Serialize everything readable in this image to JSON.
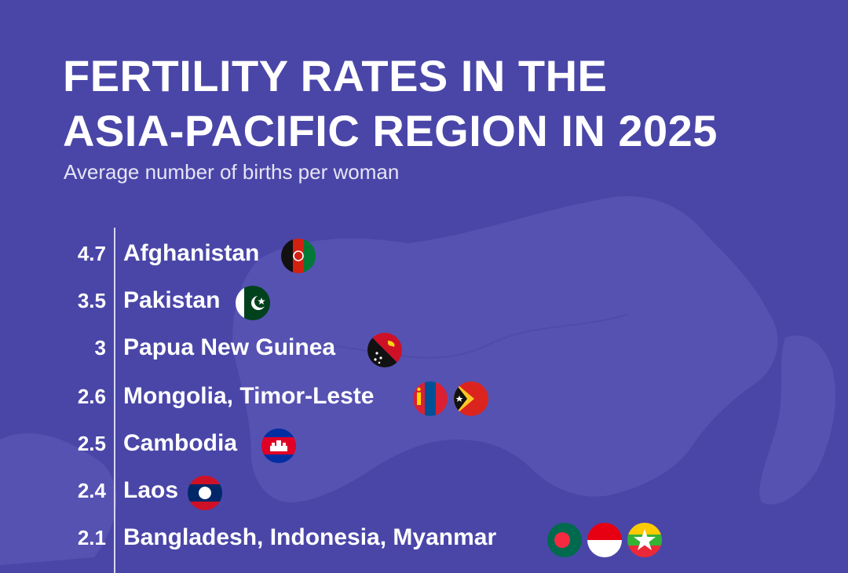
{
  "title_lines": [
    "FERTILITY RATES IN THE",
    "ASIA-PACIFIC REGION IN 2025"
  ],
  "subtitle": "Average number of births per woman",
  "colors": {
    "background": "#4a46a8",
    "map": "#5653b3",
    "text": "#ffffff"
  },
  "chart_data": {
    "type": "table",
    "title": "FERTILITY RATES IN THE ASIA-PACIFIC REGION IN 2025",
    "subtitle": "Average number of births per woman",
    "rows": [
      {
        "value": "4.7",
        "label": "Afghanistan",
        "flags": [
          "afghanistan-flag-icon"
        ]
      },
      {
        "value": "3.5",
        "label": "Pakistan",
        "flags": [
          "pakistan-flag-icon"
        ]
      },
      {
        "value": "3",
        "label": "Papua New Guinea",
        "flags": [
          "papua-new-guinea-flag-icon"
        ]
      },
      {
        "value": "2.6",
        "label": "Mongolia, Timor-Leste",
        "flags": [
          "mongolia-flag-icon",
          "timor-leste-flag-icon"
        ]
      },
      {
        "value": "2.5",
        "label": "Cambodia",
        "flags": [
          "cambodia-flag-icon"
        ]
      },
      {
        "value": "2.4",
        "label": "Laos",
        "flags": [
          "laos-flag-icon"
        ]
      },
      {
        "value": "2.1",
        "label": "Bangladesh, Indonesia, Myanmar",
        "flags": [
          "bangladesh-flag-icon",
          "indonesia-flag-icon",
          "myanmar-flag-icon"
        ]
      }
    ]
  }
}
